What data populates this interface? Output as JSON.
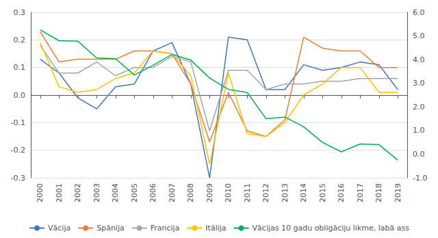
{
  "chart_data": {
    "type": "line",
    "categories": [
      "2000",
      "2001",
      "2002",
      "2003",
      "2004",
      "2005",
      "2006",
      "2007",
      "2008",
      "2009",
      "2010",
      "2011",
      "2012",
      "2013",
      "2014",
      "2015",
      "2016",
      "2017",
      "2018",
      "2019"
    ],
    "series": [
      {
        "name": "Vācija",
        "color": "#4472C4",
        "values": [
          0.13,
          0.08,
          -0.01,
          -0.05,
          0.03,
          0.04,
          0.16,
          0.19,
          0.04,
          -0.3,
          0.21,
          0.2,
          0.02,
          0.02,
          0.11,
          0.09,
          0.1,
          0.12,
          0.11,
          0.02
        ]
      },
      {
        "name": "Spānija",
        "color": "#ED7D31",
        "values": [
          0.23,
          0.12,
          0.13,
          0.13,
          0.13,
          0.16,
          0.16,
          0.15,
          0.04,
          -0.17,
          0.01,
          -0.13,
          -0.15,
          -0.09,
          0.21,
          0.17,
          0.16,
          0.16,
          0.1,
          0.1
        ]
      },
      {
        "name": "Francija",
        "color": "#A5A5A5",
        "values": [
          0.18,
          0.08,
          0.08,
          0.12,
          0.07,
          0.1,
          0.1,
          0.14,
          0.12,
          -0.13,
          0.09,
          0.09,
          0.02,
          0.04,
          0.04,
          0.05,
          0.05,
          0.06,
          0.06,
          0.06
        ]
      },
      {
        "name": "Itālija",
        "color": "#FFC000",
        "values": [
          0.19,
          0.03,
          0.01,
          0.02,
          0.06,
          0.08,
          0.16,
          0.15,
          0.07,
          -0.25,
          0.08,
          -0.14,
          -0.15,
          -0.1,
          0.0,
          0.04,
          0.1,
          0.1,
          0.01,
          0.01
        ]
      },
      {
        "name": "Vācijas 10 gadu obligāciju likme, labā ass",
        "color": "#00B050",
        "axis": "y2",
        "values": [
          5.26,
          4.8,
          4.78,
          4.07,
          4.04,
          3.35,
          3.76,
          4.22,
          3.98,
          3.22,
          2.74,
          2.61,
          1.5,
          1.57,
          1.16,
          0.5,
          0.1,
          0.43,
          0.4,
          -0.25
        ]
      }
    ],
    "ylim": [
      -0.3,
      0.3
    ],
    "yticks": [
      -0.3,
      -0.2,
      -0.1,
      {
        "value": 0,
        "label": "0.0"
      },
      0.1,
      0.2,
      0.3
    ],
    "y2lim": [
      -1.0,
      6.0
    ],
    "y2ticks": [
      {
        "value": -1,
        "label": "-1.0"
      },
      {
        "value": 0,
        "label": "0.0"
      },
      {
        "value": 1,
        "label": "1.0"
      },
      {
        "value": 2,
        "label": "2.0"
      },
      {
        "value": 3,
        "label": "3.0"
      },
      {
        "value": 4,
        "label": "4.0"
      },
      {
        "value": 5,
        "label": "5.0"
      },
      {
        "value": 6,
        "label": "6.0"
      }
    ],
    "grid": true,
    "legend": "bottom"
  }
}
